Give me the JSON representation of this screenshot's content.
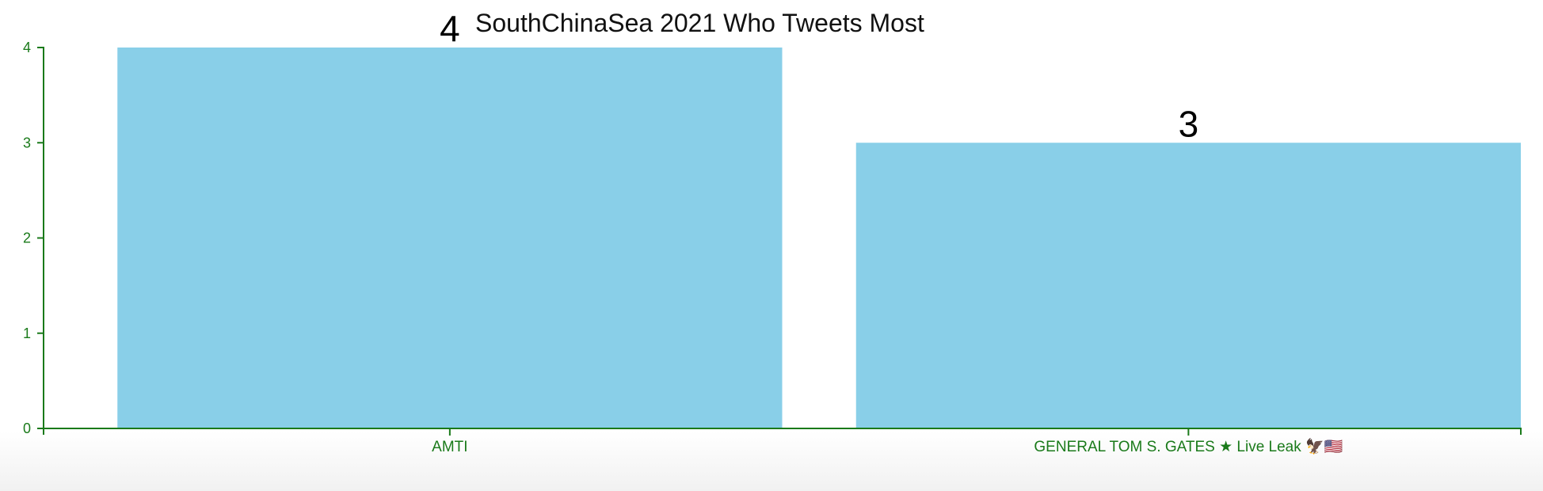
{
  "chart_data": {
    "type": "bar",
    "title": "SouthChinaSea 2021 Who Tweets Most",
    "categories": [
      "AMTI",
      "GENERAL TOM S. GATES ★ Live Leak 🦅🇺🇸"
    ],
    "values": [
      4,
      3
    ],
    "value_labels": [
      "4",
      "3"
    ],
    "y_ticks": [
      "0",
      "1",
      "2",
      "3",
      "4"
    ],
    "ylim": [
      0,
      4
    ],
    "xlabel": "",
    "ylabel": "",
    "grid": false,
    "legend": "none"
  },
  "colors": {
    "bar": "#89cfe8",
    "axis": "#1a7a1a",
    "title": "#111111",
    "value_label": "#000000"
  }
}
